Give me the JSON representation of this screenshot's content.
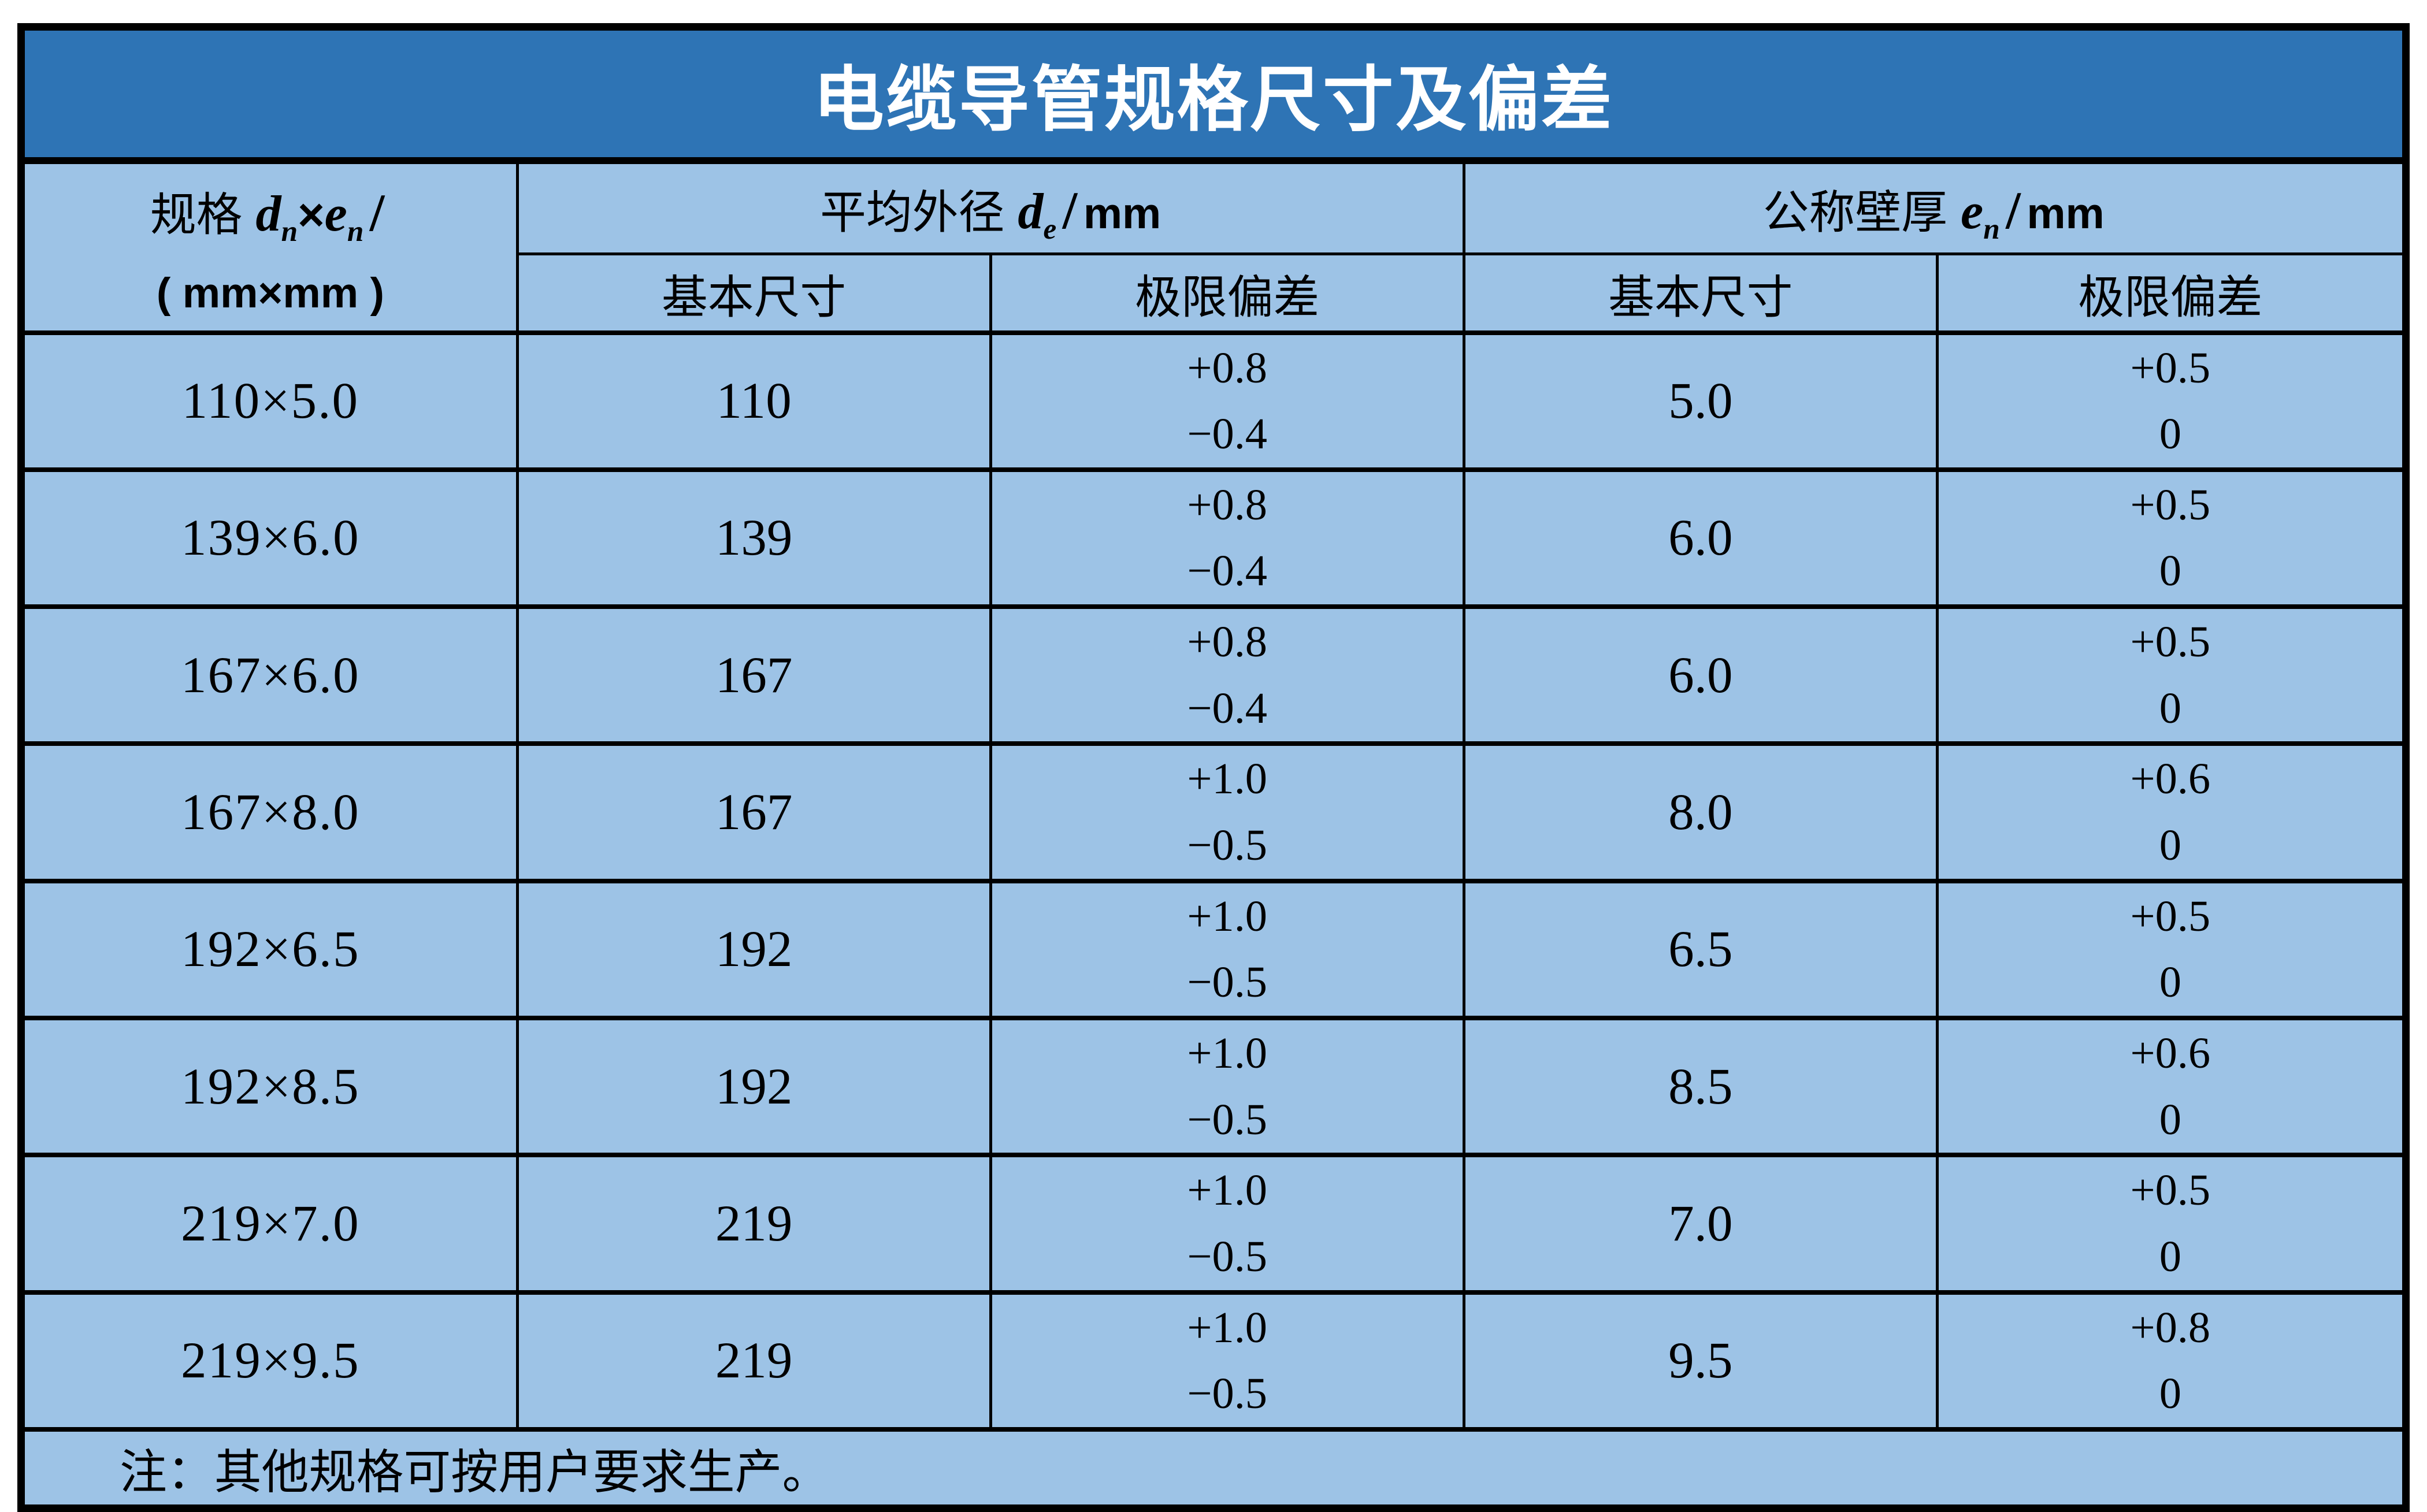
{
  "title": "电缆导管规格尺寸及偏差",
  "colors": {
    "title_bar_bg": "#2E74B5",
    "title_text": "#FFFFFF",
    "cell_bg": "#9DC3E6",
    "grid_line": "#000000",
    "body_text": "#000000"
  },
  "header": {
    "spec": {
      "word": "规格",
      "d": "d",
      "d_sub": "n",
      "times": "×",
      "e": "e",
      "e_sub": "n",
      "slash": "/",
      "line2": "( mm×mm )"
    },
    "outer_diameter": {
      "word": "平均外径",
      "var": "d",
      "sub": "e",
      "slash": "/",
      "unit": "mm"
    },
    "wall_thickness": {
      "word": "公称壁厚",
      "var": "e",
      "sub": "n",
      "slash": "/",
      "unit": "mm"
    },
    "sub_basic": "基本尺寸",
    "sub_deviation": "极限偏差"
  },
  "rows": [
    {
      "spec": "110×5.0",
      "od": "110",
      "od_plus": "+0.8",
      "od_minus": "−0.4",
      "wt": "5.0",
      "wt_plus": "+0.5",
      "wt_minus": "0"
    },
    {
      "spec": "139×6.0",
      "od": "139",
      "od_plus": "+0.8",
      "od_minus": "−0.4",
      "wt": "6.0",
      "wt_plus": "+0.5",
      "wt_minus": "0"
    },
    {
      "spec": "167×6.0",
      "od": "167",
      "od_plus": "+0.8",
      "od_minus": "−0.4",
      "wt": "6.0",
      "wt_plus": "+0.5",
      "wt_minus": "0"
    },
    {
      "spec": "167×8.0",
      "od": "167",
      "od_plus": "+1.0",
      "od_minus": "−0.5",
      "wt": "8.0",
      "wt_plus": "+0.6",
      "wt_minus": "0"
    },
    {
      "spec": "192×6.5",
      "od": "192",
      "od_plus": "+1.0",
      "od_minus": "−0.5",
      "wt": "6.5",
      "wt_plus": "+0.5",
      "wt_minus": "0"
    },
    {
      "spec": "192×8.5",
      "od": "192",
      "od_plus": "+1.0",
      "od_minus": "−0.5",
      "wt": "8.5",
      "wt_plus": "+0.6",
      "wt_minus": "0"
    },
    {
      "spec": "219×7.0",
      "od": "219",
      "od_plus": "+1.0",
      "od_minus": "−0.5",
      "wt": "7.0",
      "wt_plus": "+0.5",
      "wt_minus": "0"
    },
    {
      "spec": "219×9.5",
      "od": "219",
      "od_plus": "+1.0",
      "od_minus": "−0.5",
      "wt": "9.5",
      "wt_plus": "+0.8",
      "wt_minus": "0"
    }
  ],
  "note": "注：其他规格可按用户要求生产。"
}
